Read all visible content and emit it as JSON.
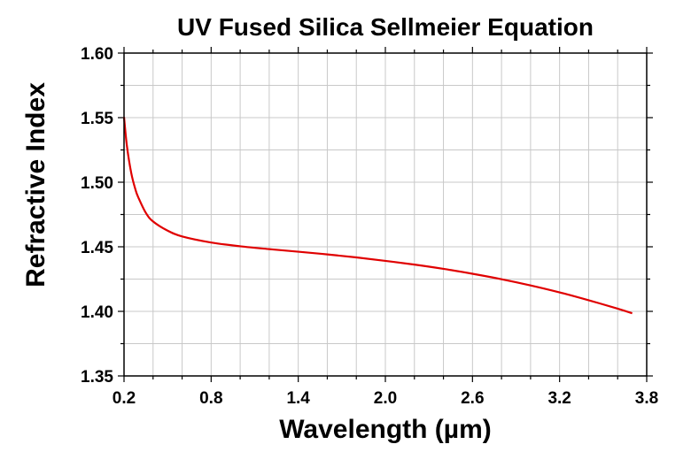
{
  "chart_data": {
    "type": "line",
    "title": "UV Fused Silica Sellmeier Equation",
    "xlabel": "Wavelength (µm)",
    "ylabel": "Refractive Index",
    "xlim": [
      0.2,
      3.8
    ],
    "ylim": [
      1.35,
      1.6
    ],
    "x_ticks": [
      "0.2",
      "0.8",
      "1.4",
      "2.0",
      "2.6",
      "3.2",
      "3.8"
    ],
    "y_ticks": [
      "1.35",
      "1.40",
      "1.45",
      "1.50",
      "1.55",
      "1.60"
    ],
    "x_minor_step": 0.2,
    "y_minor_step": 0.025,
    "grid": true,
    "legend": "none",
    "series": [
      {
        "color": "#e00000",
        "x": [
          0.2,
          0.22,
          0.25,
          0.28,
          0.3,
          0.35,
          0.4,
          0.5,
          0.6,
          0.8,
          1.0,
          1.2,
          1.4,
          1.6,
          1.8,
          2.0,
          2.2,
          2.4,
          2.6,
          2.8,
          3.0,
          3.2,
          3.4,
          3.6,
          3.7
        ],
        "y": [
          1.5505,
          1.528,
          1.507,
          1.4938,
          1.4878,
          1.4763,
          1.4696,
          1.4625,
          1.458,
          1.4533,
          1.4504,
          1.4482,
          1.4462,
          1.4441,
          1.4418,
          1.4391,
          1.4362,
          1.4329,
          1.4291,
          1.4249,
          1.4201,
          1.4147,
          1.4086,
          1.4021,
          1.3985
        ]
      }
    ]
  }
}
